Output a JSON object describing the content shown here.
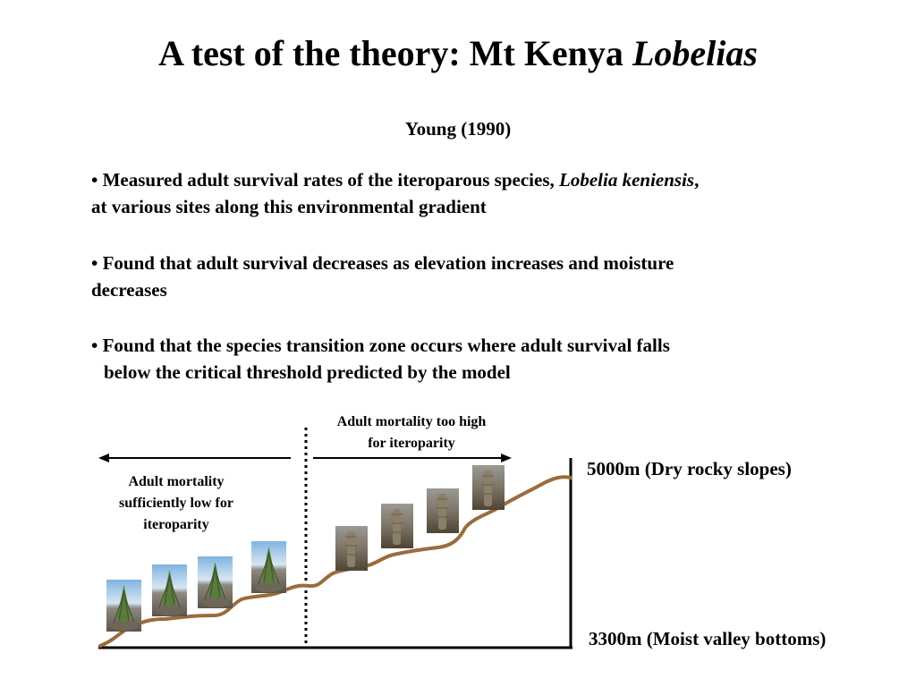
{
  "slide": {
    "title_main": "A test of the theory: Mt Kenya ",
    "title_italic": "Lobelias",
    "citation": "Young (1990)",
    "bullets": [
      {
        "before": "• Measured adult survival rates of the iteroparous species, ",
        "italic": "Lobelia keniensis",
        "after": ",",
        "line2": "at various sites along this environmental gradient"
      },
      {
        "line1": "• Found that adult survival decreases as elevation increases and moisture",
        "line2": "decreases"
      },
      {
        "line1": "• Found that the species transition zone occurs where adult survival falls",
        "line2": "below the critical threshold predicted by the model"
      }
    ]
  },
  "diagram": {
    "label_high_line1": "Adult mortality too high",
    "label_high_line2": "for iteroparity",
    "label_low_line1": "Adult mortality",
    "label_low_line2": "sufficiently low for",
    "label_low_line3": "iteroparity",
    "elevation_top": "5000m (Dry rocky slopes)",
    "elevation_bottom": "3300m (Moist valley bottoms)",
    "colors": {
      "slope": "#9b6b3c",
      "axis": "#000000",
      "sky": "#a9c9e4",
      "rock": "#7e7a72",
      "foliage": "#5a7a3e"
    },
    "photos": [
      {
        "name": "lobelia-photo-1",
        "style": "rosette"
      },
      {
        "name": "lobelia-photo-2",
        "style": "rosette"
      },
      {
        "name": "lobelia-photo-3",
        "style": "rosette"
      },
      {
        "name": "lobelia-photo-4",
        "style": "rosette"
      },
      {
        "name": "lobelia-photo-5",
        "style": "columnar"
      },
      {
        "name": "lobelia-photo-6",
        "style": "columnar"
      },
      {
        "name": "lobelia-photo-7",
        "style": "columnar"
      },
      {
        "name": "lobelia-photo-8",
        "style": "columnar"
      }
    ]
  }
}
